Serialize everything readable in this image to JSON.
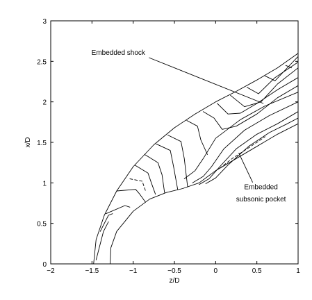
{
  "chart_data": {
    "type": "line",
    "title": "",
    "xlabel": "z/D",
    "ylabel": "x/D",
    "xlim": [
      -2,
      1
    ],
    "ylim": [
      0,
      3
    ],
    "xticks": [
      -2,
      -1.5,
      -1,
      -0.5,
      0,
      0.5,
      1
    ],
    "xtick_labels": [
      "−2",
      "−1.5",
      "−1",
      "−0.5",
      "0",
      "0.5",
      "1"
    ],
    "yticks": [
      0,
      0.5,
      1,
      1.5,
      2,
      2.5,
      3
    ],
    "ytick_labels": [
      "0",
      "0.5",
      "1",
      "1.5",
      "2",
      "2.5",
      "3"
    ],
    "grid": false,
    "annotations": [
      {
        "text": "Embedded shock",
        "x": -1.18,
        "y": 2.58,
        "tip_x": 0.58,
        "tip_y": 1.98
      },
      {
        "text": "Embedded",
        "x": 0.55,
        "y": 0.92,
        "tip_x": 0.28,
        "tip_y": 1.37
      },
      {
        "text": "subsonic pocket",
        "x": 0.55,
        "y": 0.77,
        "tip_x": null,
        "tip_y": null
      }
    ],
    "series": [
      {
        "role": "bow-shock",
        "style": "solid",
        "x": [
          -1.48,
          -1.45,
          -1.35,
          -1.2,
          -1.0,
          -0.75,
          -0.5,
          -0.25,
          0.0,
          0.25,
          0.5,
          0.75,
          1.0
        ],
        "y": [
          0.0,
          0.3,
          0.6,
          0.9,
          1.2,
          1.47,
          1.68,
          1.85,
          2.0,
          2.13,
          2.27,
          2.42,
          2.6
        ]
      },
      {
        "role": "body-surface",
        "style": "solid",
        "x": [
          -1.28,
          -1.27,
          -1.2,
          -1.0,
          -0.8,
          -0.6,
          -0.4,
          -0.2,
          0.0,
          0.25,
          0.5,
          0.75,
          1.0
        ],
        "y": [
          0.0,
          0.2,
          0.4,
          0.65,
          0.8,
          0.88,
          0.93,
          1.0,
          1.15,
          1.3,
          1.45,
          1.6,
          1.73
        ]
      },
      {
        "role": "contour",
        "style": "solid",
        "x": [
          -1.45,
          -1.36,
          -1.3
        ],
        "y": [
          0.05,
          0.4,
          0.52
        ]
      },
      {
        "role": "contour",
        "style": "solid",
        "x": [
          -1.4,
          -1.3,
          -1.25
        ],
        "y": [
          0.4,
          0.6,
          0.62
        ]
      },
      {
        "role": "contour",
        "style": "solid",
        "x": [
          -1.33,
          -1.1,
          -1.04
        ],
        "y": [
          0.62,
          0.72,
          0.7
        ]
      },
      {
        "role": "contour",
        "style": "solid",
        "x": [
          -1.2,
          -0.97,
          -0.92,
          -0.85
        ],
        "y": [
          0.9,
          0.92,
          0.86,
          0.76
        ]
      },
      {
        "role": "contour",
        "style": "dashed",
        "x": [
          -1.04,
          -0.89,
          -0.85
        ],
        "y": [
          1.05,
          1.02,
          0.9
        ]
      },
      {
        "role": "contour",
        "style": "solid",
        "x": [
          -0.98,
          -0.82,
          -0.78,
          -0.73
        ],
        "y": [
          1.22,
          1.12,
          1.0,
          0.86
        ]
      },
      {
        "role": "contour",
        "style": "solid",
        "x": [
          -0.86,
          -0.7,
          -0.65,
          -0.62
        ],
        "y": [
          1.35,
          1.25,
          1.1,
          0.88
        ]
      },
      {
        "role": "contour",
        "style": "solid",
        "x": [
          -0.72,
          -0.55,
          -0.51,
          -0.46
        ],
        "y": [
          1.48,
          1.4,
          1.2,
          0.92
        ]
      },
      {
        "role": "contour",
        "style": "solid",
        "x": [
          -0.58,
          -0.42,
          -0.38,
          -0.34
        ],
        "y": [
          1.59,
          1.51,
          1.3,
          0.95
        ]
      },
      {
        "role": "contour",
        "style": "solid",
        "x": [
          -0.35,
          -0.22,
          -0.18,
          -0.1
        ],
        "y": [
          1.77,
          1.7,
          1.53,
          1.35
        ]
      },
      {
        "role": "contour",
        "style": "solid",
        "x": [
          -0.15,
          -0.02,
          0.08,
          0.25,
          0.5,
          0.75,
          1.0
        ],
        "y": [
          1.88,
          1.8,
          1.66,
          1.7,
          1.85,
          2.05,
          2.2
        ]
      },
      {
        "role": "contour",
        "style": "solid",
        "x": [
          0.02,
          0.15,
          0.3,
          0.5,
          0.75,
          1.0
        ],
        "y": [
          1.98,
          1.85,
          1.86,
          1.98,
          2.15,
          2.3
        ]
      },
      {
        "role": "contour",
        "style": "solid",
        "x": [
          0.18,
          0.35,
          0.55,
          0.75,
          1.0
        ],
        "y": [
          2.08,
          1.94,
          2.0,
          2.22,
          2.42
        ]
      },
      {
        "role": "contour",
        "style": "solid",
        "x": [
          0.38,
          0.52,
          0.72,
          1.0
        ],
        "y": [
          2.18,
          2.1,
          2.3,
          2.49
        ]
      },
      {
        "role": "contour",
        "style": "solid",
        "x": [
          0.6,
          0.72,
          0.85,
          1.0
        ],
        "y": [
          2.32,
          2.26,
          2.4,
          2.56
        ]
      },
      {
        "role": "contour",
        "style": "solid",
        "x": [
          0.85,
          0.92
        ],
        "y": [
          2.45,
          2.42
        ]
      },
      {
        "role": "contour",
        "style": "solid",
        "x": [
          -0.38,
          -0.25,
          -0.15,
          0.0,
          0.3,
          0.6,
          1.0
        ],
        "y": [
          1.05,
          1.15,
          1.3,
          1.55,
          1.78,
          1.95,
          2.12
        ]
      },
      {
        "role": "contour",
        "style": "solid",
        "x": [
          -0.28,
          -0.15,
          -0.05,
          0.1,
          0.35,
          0.65,
          1.0
        ],
        "y": [
          1.0,
          1.08,
          1.2,
          1.42,
          1.65,
          1.83,
          2.0
        ]
      },
      {
        "role": "contour",
        "style": "solid",
        "x": [
          -0.2,
          -0.08,
          0.05,
          0.25,
          0.5,
          0.75,
          1.0
        ],
        "y": [
          0.98,
          1.05,
          1.2,
          1.42,
          1.6,
          1.73,
          1.88
        ]
      },
      {
        "role": "contour",
        "style": "solid",
        "x": [
          -0.12,
          0.0,
          0.15,
          0.4,
          0.65,
          0.85,
          1.0
        ],
        "y": [
          0.99,
          1.06,
          1.22,
          1.45,
          1.62,
          1.72,
          1.8
        ]
      },
      {
        "role": "contour",
        "style": "dashed",
        "x": [
          0.05,
          0.2,
          0.35,
          0.5,
          0.6
        ],
        "y": [
          1.18,
          1.3,
          1.4,
          1.5,
          1.57
        ]
      }
    ]
  }
}
